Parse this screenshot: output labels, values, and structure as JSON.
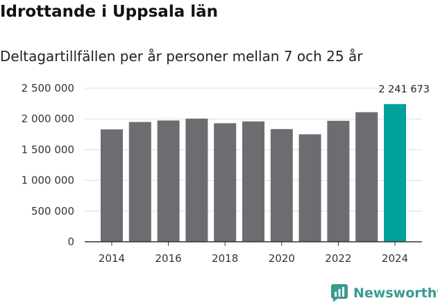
{
  "title": "Idrottande i Uppsala län",
  "subtitle": "Deltagartillfällen per år personer mellan 7 och 25 år",
  "brand": {
    "name": "Newsworthy",
    "icon": "bar-chart-bubble-icon"
  },
  "colors": {
    "bar": "#6d6c70",
    "highlight": "#00a19a",
    "grid": "#dddddd",
    "axis": "#333333",
    "brand": "#3a9a92"
  },
  "chart_data": {
    "type": "bar",
    "title": "Idrottande i Uppsala län",
    "subtitle": "Deltagartillfällen per år personer mellan 7 och 25 år",
    "xlabel": "",
    "ylabel": "",
    "categories": [
      "2014",
      "2015",
      "2016",
      "2017",
      "2018",
      "2019",
      "2020",
      "2021",
      "2022",
      "2023",
      "2024"
    ],
    "values": [
      1830000,
      1950000,
      1975000,
      2005000,
      1930000,
      1960000,
      1835000,
      1750000,
      1970000,
      2110000,
      2241673
    ],
    "highlight_index": 10,
    "ylim": [
      0,
      2500000
    ],
    "yticks": [
      0,
      500000,
      1000000,
      1500000,
      2000000,
      2500000
    ],
    "ytick_labels": [
      "0",
      "500 000",
      "1 000 000",
      "1 500 000",
      "2 000 000",
      "2 500 000"
    ],
    "xtick_labels": [
      "2014",
      "2016",
      "2018",
      "2020",
      "2022",
      "2024"
    ],
    "annotations": [
      {
        "category": "2024",
        "text": "2 241 673"
      }
    ],
    "grid": true
  }
}
